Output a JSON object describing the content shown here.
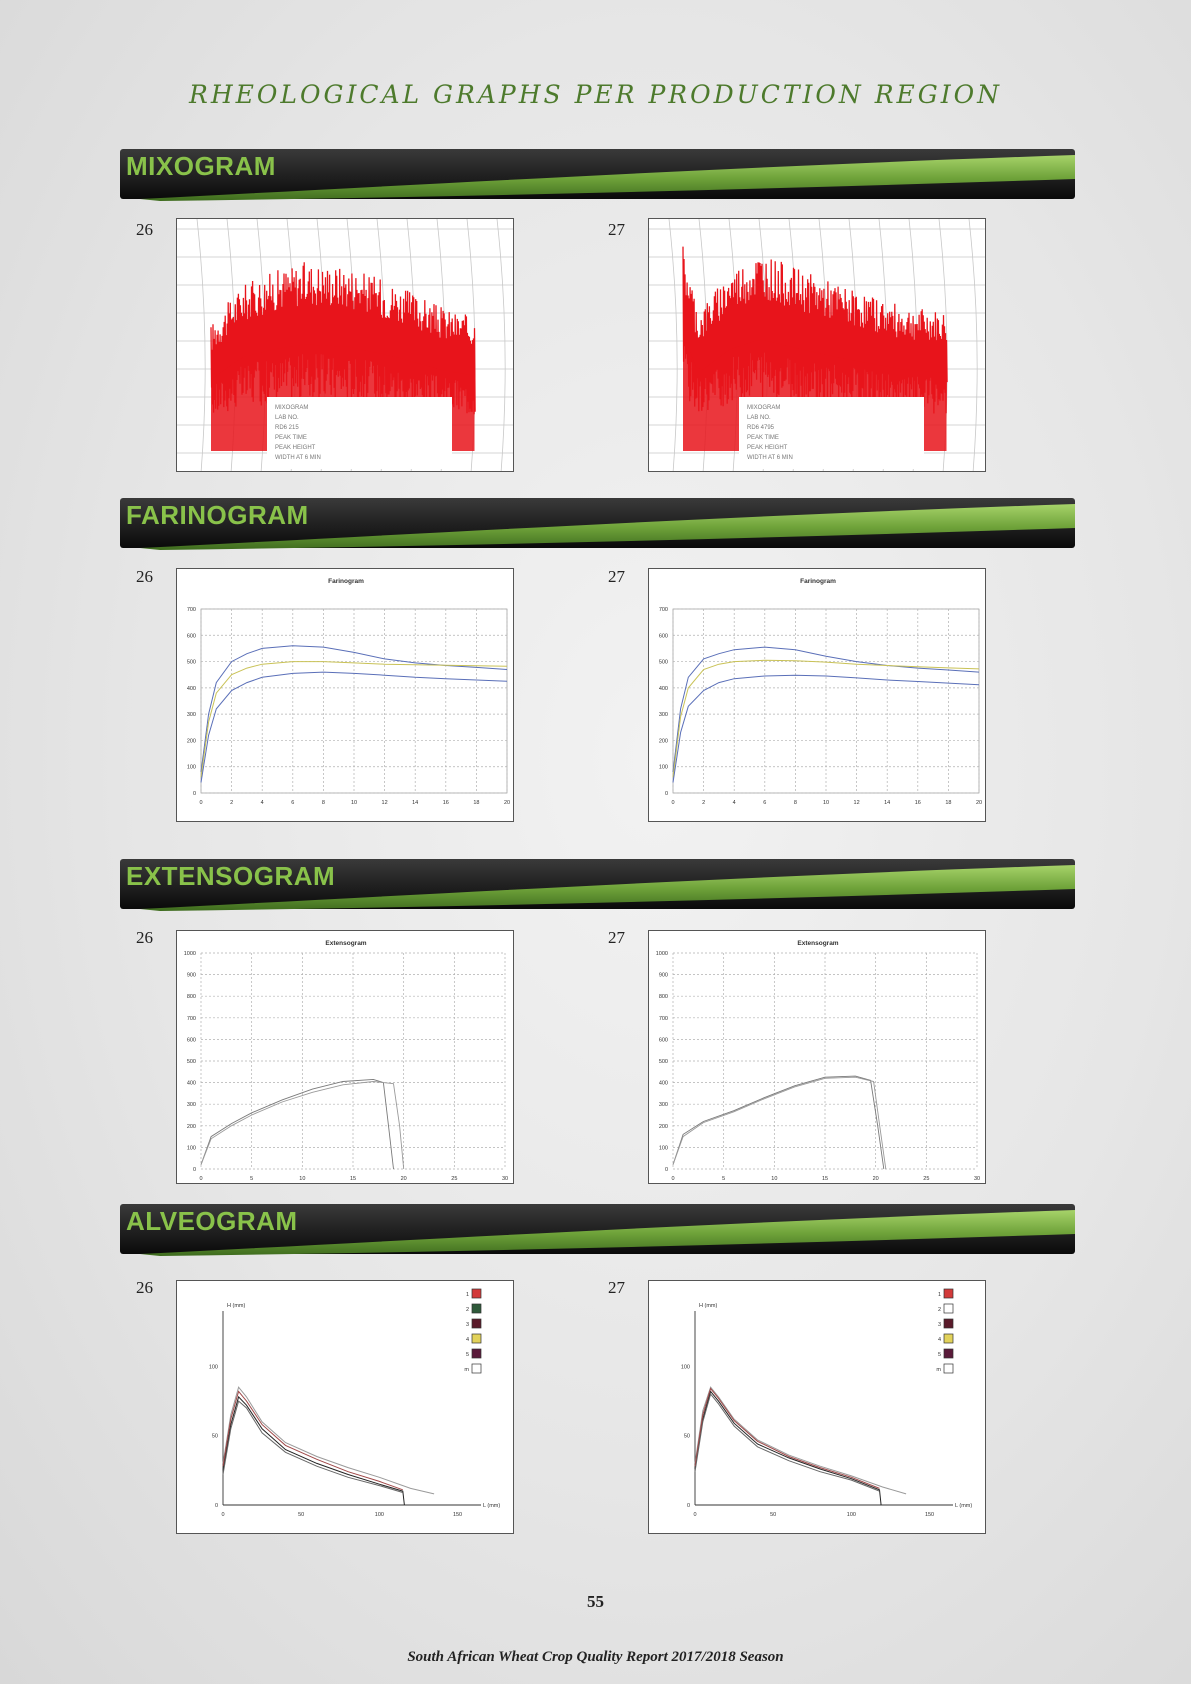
{
  "page": {
    "title": "RHEOLOGICAL GRAPHS PER PRODUCTION REGION",
    "page_number": "55",
    "footer": "South African Wheat Crop Quality Report 2017/2018 Season"
  },
  "sections": {
    "mixogram": "MIXOGRAM",
    "farinogram": "FARINOGRAM",
    "extensogram": "EXTENSOGRAM",
    "alveogram": "ALVEOGRAM"
  },
  "chart_numbers": [
    "26",
    "27"
  ],
  "colors": {
    "title_green": "#4d7a2c",
    "banner_text": "#89c24a",
    "mixogram_trace": "#e8141b",
    "farinogram_blue": "#5a6fb8",
    "farinogram_yellow": "#c9c256",
    "curve_gray": "#7a7a7a"
  },
  "chart_data": [
    {
      "type": "line",
      "section": "mixogram",
      "id": "26",
      "description_series": [
        {
          "values_envelope": [
            [
              0,
              0.55
            ],
            [
              0.1,
              0.72
            ],
            [
              0.2,
              0.78
            ],
            [
              0.3,
              0.82
            ],
            [
              0.45,
              0.8
            ],
            [
              0.6,
              0.72
            ],
            [
              0.75,
              0.62
            ],
            [
              0.85,
              0.58
            ]
          ]
        }
      ],
      "annotation_lines": [
        "MIXOGRAM",
        "LAB NO.",
        "RD6 215",
        "PEAK TIME",
        "PEAK HEIGHT",
        "WIDTH AT 6 MIN"
      ]
    },
    {
      "type": "line",
      "section": "mixogram",
      "id": "27",
      "description_series": [
        {
          "values_envelope": [
            [
              0,
              0.9
            ],
            [
              0.05,
              0.6
            ],
            [
              0.15,
              0.78
            ],
            [
              0.25,
              0.86
            ],
            [
              0.35,
              0.8
            ],
            [
              0.5,
              0.72
            ],
            [
              0.7,
              0.63
            ],
            [
              0.85,
              0.6
            ]
          ]
        }
      ],
      "annotation_lines": [
        "MIXOGRAM",
        "LAB NO.",
        "RD6 4795",
        "PEAK TIME",
        "PEAK HEIGHT",
        "WIDTH AT 6 MIN"
      ]
    },
    {
      "type": "line",
      "section": "farinogram",
      "id": "26",
      "title": "Farinogram",
      "x_ticks": [
        "0",
        "2",
        "4",
        "6",
        "8",
        "10",
        "12",
        "14",
        "16",
        "18",
        "20"
      ],
      "y_ticks": [
        "0",
        "100",
        "200",
        "300",
        "400",
        "500",
        "600",
        "700"
      ],
      "xlim": [
        0,
        20
      ],
      "ylim": [
        0,
        700
      ],
      "series": [
        {
          "x": [
            0,
            0.5,
            1,
            2,
            3,
            4,
            6,
            8,
            10,
            12,
            14,
            16,
            18,
            20
          ],
          "y": [
            80,
            300,
            420,
            500,
            530,
            550,
            560,
            555,
            535,
            510,
            495,
            485,
            478,
            470
          ]
        },
        {
          "x": [
            0,
            0.5,
            1,
            2,
            3,
            4,
            6,
            8,
            10,
            12,
            14,
            16,
            18,
            20
          ],
          "y": [
            60,
            270,
            380,
            450,
            475,
            490,
            500,
            500,
            495,
            490,
            488,
            486,
            484,
            482
          ]
        },
        {
          "x": [
            0,
            0.5,
            1,
            2,
            3,
            4,
            6,
            8,
            10,
            12,
            14,
            16,
            18,
            20
          ],
          "y": [
            40,
            220,
            320,
            390,
            420,
            440,
            455,
            460,
            455,
            448,
            440,
            435,
            430,
            425
          ]
        }
      ]
    },
    {
      "type": "line",
      "section": "farinogram",
      "id": "27",
      "title": "Farinogram",
      "x_ticks": [
        "0",
        "2",
        "4",
        "6",
        "8",
        "10",
        "12",
        "14",
        "16",
        "18",
        "20"
      ],
      "y_ticks": [
        "0",
        "100",
        "200",
        "300",
        "400",
        "500",
        "600",
        "700"
      ],
      "xlim": [
        0,
        20
      ],
      "ylim": [
        0,
        700
      ],
      "series": [
        {
          "x": [
            0,
            0.5,
            1,
            2,
            3,
            4,
            6,
            8,
            10,
            12,
            14,
            16,
            18,
            20
          ],
          "y": [
            80,
            320,
            440,
            510,
            530,
            545,
            555,
            545,
            520,
            500,
            485,
            475,
            468,
            460
          ]
        },
        {
          "x": [
            0,
            0.5,
            1,
            2,
            3,
            4,
            6,
            8,
            10,
            12,
            14,
            16,
            18,
            20
          ],
          "y": [
            60,
            290,
            400,
            470,
            490,
            500,
            505,
            503,
            498,
            490,
            485,
            480,
            476,
            472
          ]
        },
        {
          "x": [
            0,
            0.5,
            1,
            2,
            3,
            4,
            6,
            8,
            10,
            12,
            14,
            16,
            18,
            20
          ],
          "y": [
            40,
            230,
            330,
            390,
            420,
            435,
            445,
            448,
            445,
            438,
            430,
            424,
            418,
            412
          ]
        }
      ]
    },
    {
      "type": "line",
      "section": "extensogram",
      "id": "26",
      "title": "Extensogram",
      "x_ticks": [
        "0",
        "5",
        "10",
        "15",
        "20",
        "25",
        "30"
      ],
      "y_ticks": [
        "0",
        "100",
        "200",
        "300",
        "400",
        "500",
        "600",
        "700",
        "800",
        "900",
        "1000"
      ],
      "xlim": [
        0,
        30
      ],
      "ylim": [
        0,
        1000
      ],
      "series": [
        {
          "x": [
            0,
            1,
            3,
            5,
            8,
            11,
            14,
            17,
            18,
            18.5,
            19
          ],
          "y": [
            20,
            150,
            210,
            260,
            320,
            370,
            405,
            415,
            400,
            200,
            0
          ]
        },
        {
          "x": [
            0,
            1,
            3,
            5,
            8,
            11,
            14,
            17,
            19,
            19.6,
            20
          ],
          "y": [
            20,
            140,
            200,
            250,
            310,
            355,
            390,
            405,
            395,
            200,
            0
          ]
        }
      ]
    },
    {
      "type": "line",
      "section": "extensogram",
      "id": "27",
      "title": "Extensogram",
      "x_ticks": [
        "0",
        "5",
        "10",
        "15",
        "20",
        "25",
        "30"
      ],
      "y_ticks": [
        "0",
        "100",
        "200",
        "300",
        "400",
        "500",
        "600",
        "700",
        "800",
        "900",
        "1000"
      ],
      "xlim": [
        0,
        30
      ],
      "ylim": [
        0,
        1000
      ],
      "series": [
        {
          "x": [
            0,
            1,
            3,
            6,
            9,
            12,
            15,
            18,
            19.5,
            20.2,
            20.8
          ],
          "y": [
            20,
            160,
            220,
            270,
            330,
            385,
            425,
            430,
            410,
            200,
            0
          ]
        },
        {
          "x": [
            0,
            1,
            3,
            6,
            9,
            12,
            15,
            18,
            19.8,
            20.4,
            21
          ],
          "y": [
            20,
            150,
            215,
            265,
            325,
            380,
            420,
            425,
            405,
            200,
            0
          ]
        }
      ]
    },
    {
      "type": "line",
      "section": "alveogram",
      "id": "26",
      "ylabel": "H (mm)",
      "xlabel": "L (mm)",
      "x_ticks": [
        "0",
        "50",
        "100",
        "150"
      ],
      "y_ticks": [
        "0",
        "50",
        "100"
      ],
      "xlim": [
        0,
        165
      ],
      "ylim": [
        0,
        140
      ],
      "legend": [
        "1",
        "2",
        "3",
        "4",
        "5",
        "m"
      ],
      "legend_colors": [
        "#d23a3a",
        "#2e5a3a",
        "#5a1a2a",
        "#e2d25a",
        "#5a1a3a",
        "#ffffff"
      ],
      "series": [
        {
          "x": [
            0,
            5,
            10,
            15,
            25,
            40,
            60,
            80,
            100,
            120,
            135
          ],
          "y": [
            30,
            65,
            85,
            78,
            60,
            45,
            35,
            27,
            20,
            12,
            8
          ]
        },
        {
          "x": [
            0,
            5,
            10,
            15,
            25,
            40,
            60,
            80,
            100,
            115,
            116
          ],
          "y": [
            25,
            58,
            78,
            72,
            55,
            40,
            30,
            22,
            15,
            10,
            0
          ]
        },
        {
          "x": [
            0,
            5,
            10,
            15,
            25,
            40,
            60,
            80,
            100,
            115
          ],
          "y": [
            28,
            62,
            82,
            75,
            58,
            43,
            33,
            24,
            17,
            11
          ]
        },
        {
          "x": [
            0,
            5,
            10,
            15,
            25,
            40,
            60,
            80,
            100,
            115
          ],
          "y": [
            22,
            55,
            75,
            70,
            52,
            38,
            28,
            20,
            14,
            9
          ]
        }
      ]
    },
    {
      "type": "line",
      "section": "alveogram",
      "id": "27",
      "ylabel": "H (mm)",
      "xlabel": "L (mm)",
      "x_ticks": [
        "0",
        "50",
        "100",
        "150"
      ],
      "y_ticks": [
        "0",
        "50",
        "100"
      ],
      "xlim": [
        0,
        165
      ],
      "ylim": [
        0,
        140
      ],
      "legend": [
        "1",
        "2",
        "3",
        "4",
        "5",
        "m"
      ],
      "legend_colors": [
        "#d23a3a",
        "#ffffff",
        "#5a1a2a",
        "#e2d25a",
        "#5a1a3a",
        "#ffffff"
      ],
      "series": [
        {
          "x": [
            0,
            5,
            10,
            15,
            25,
            40,
            60,
            80,
            100,
            120,
            135
          ],
          "y": [
            30,
            68,
            85,
            78,
            62,
            47,
            36,
            28,
            21,
            13,
            8
          ]
        },
        {
          "x": [
            0,
            5,
            10,
            15,
            25,
            40,
            60,
            80,
            100,
            118,
            119
          ],
          "y": [
            26,
            62,
            82,
            75,
            59,
            44,
            34,
            26,
            19,
            11,
            0
          ]
        },
        {
          "x": [
            0,
            5,
            10,
            15,
            25,
            40,
            60,
            80,
            100,
            118
          ],
          "y": [
            28,
            65,
            84,
            77,
            61,
            46,
            35,
            27,
            20,
            12
          ]
        },
        {
          "x": [
            0,
            5,
            10,
            15,
            25,
            40,
            60,
            80,
            100,
            118
          ],
          "y": [
            24,
            60,
            80,
            73,
            57,
            42,
            32,
            24,
            18,
            10
          ]
        }
      ]
    }
  ]
}
